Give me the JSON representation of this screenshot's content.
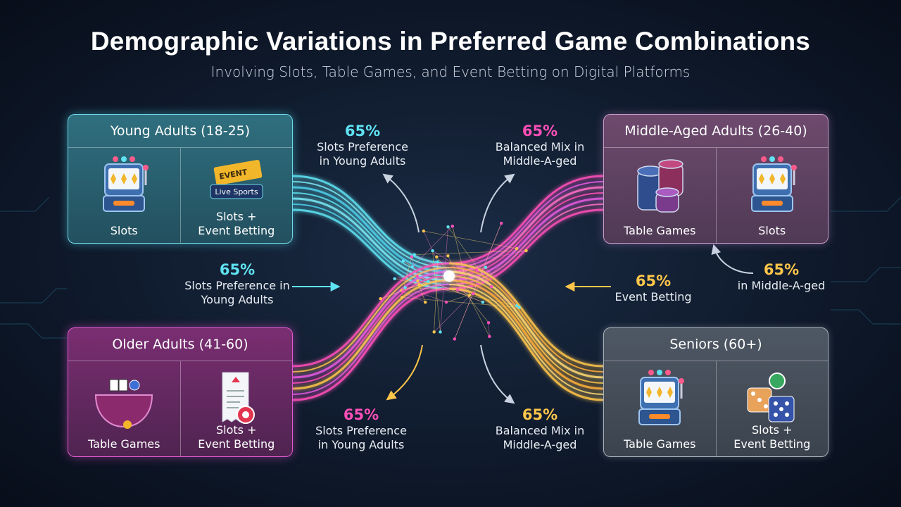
{
  "header": {
    "title": "Demographic Variations in Preferred Game Combinations",
    "subtitle": "Involving Slots, Table Games, and Event Betting on Digital Platforms"
  },
  "groups": [
    {
      "name": "Young Adults (18-25)",
      "items": [
        {
          "label": "Slots"
        },
        {
          "label": "Slots +\nEvent Betting",
          "icon_labels": [
            "EVENT",
            "Live Sports"
          ]
        }
      ]
    },
    {
      "name": "Middle-Aged Adults (26-40)",
      "items": [
        {
          "label": "Table Games"
        },
        {
          "label": "Slots"
        }
      ]
    },
    {
      "name": "Older Adults (41-60)",
      "items": [
        {
          "label": "Table Games"
        },
        {
          "label": "Slots +\nEvent Betting"
        }
      ]
    },
    {
      "name": "Seniors (60+)",
      "items": [
        {
          "label": "Table Games"
        },
        {
          "label": "Slots +\nEvent Betting"
        }
      ]
    }
  ],
  "annotations": [
    {
      "value": "65%",
      "text": "Slots Preference\nin Young Adults"
    },
    {
      "value": "65%",
      "text": "Balanced Mix in\nMiddle-A-ged"
    },
    {
      "value": "65%",
      "text": "Slots Preference in\nYoung Adults"
    },
    {
      "value": "65%",
      "text": "Event Betting"
    },
    {
      "value": "65%",
      "text": "in Middle-A-ged"
    },
    {
      "value": "65%",
      "text": "Slots Preference\nin Young Adults"
    },
    {
      "value": "65%",
      "text": "Balanced Mix in\nMiddle-A-ged"
    }
  ]
}
